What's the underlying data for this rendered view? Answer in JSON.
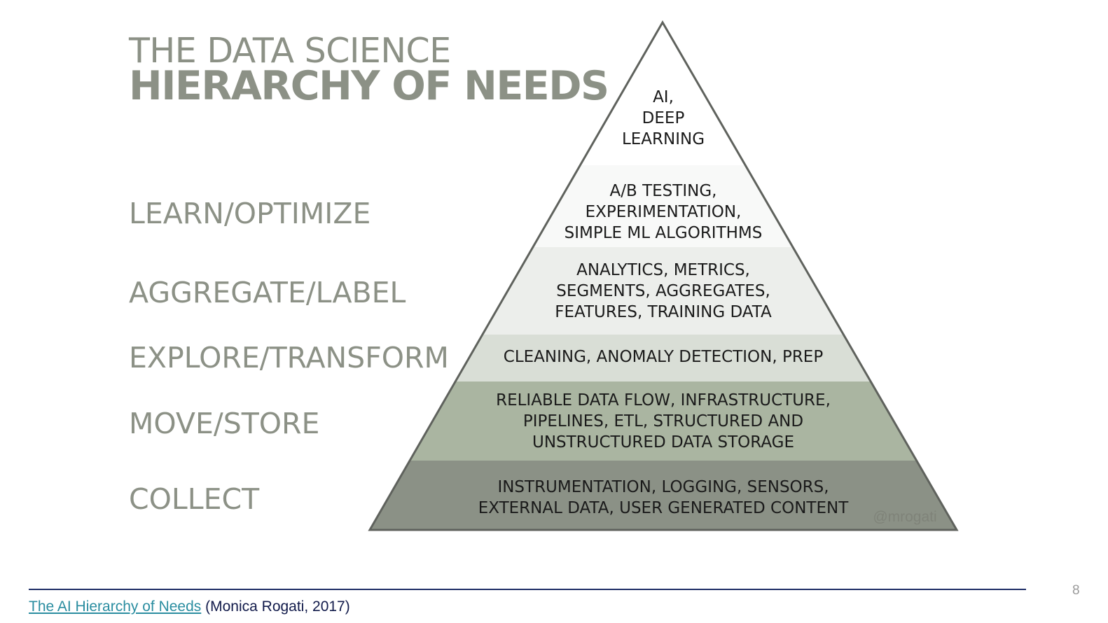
{
  "title": {
    "line1": "THE DATA SCIENCE",
    "line2": "HIERARCHY OF NEEDS"
  },
  "stages": {
    "learn": "LEARN/OPTIMIZE",
    "aggregate": "AGGREGATE/LABEL",
    "explore": "EXPLORE/TRANSFORM",
    "move": "MOVE/STORE",
    "collect": "COLLECT"
  },
  "pyramid": {
    "layers": [
      {
        "lines": [
          "AI,",
          "DEEP",
          "LEARNING"
        ],
        "color": "#ffffff"
      },
      {
        "lines": [
          "A/B TESTING,",
          "EXPERIMENTATION,",
          "SIMPLE ML ALGORITHMS"
        ],
        "color": "#f8f9f8"
      },
      {
        "lines": [
          "ANALYTICS, METRICS,",
          "SEGMENTS, AGGREGATES,",
          "FEATURES, TRAINING DATA"
        ],
        "color": "#eceeeb"
      },
      {
        "lines": [
          "CLEANING, ANOMALY DETECTION, PREP"
        ],
        "color": "#d9ded6"
      },
      {
        "lines": [
          "RELIABLE DATA FLOW, INFRASTRUCTURE,",
          "PIPELINES, ETL, STRUCTURED AND",
          "UNSTRUCTURED DATA STORAGE"
        ],
        "color": "#aab5a1"
      },
      {
        "lines": [
          "INSTRUMENTATION, LOGGING, SENSORS,",
          "EXTERNAL DATA, USER GENERATED CONTENT"
        ],
        "color": "#8b9186"
      }
    ],
    "outline_color": "#5f625d",
    "watermark": "@mrogati"
  },
  "footer": {
    "link_text": "The AI Hierarchy of Needs",
    "citation": "(Monica Rogati, 2017)"
  },
  "page_number": "8"
}
